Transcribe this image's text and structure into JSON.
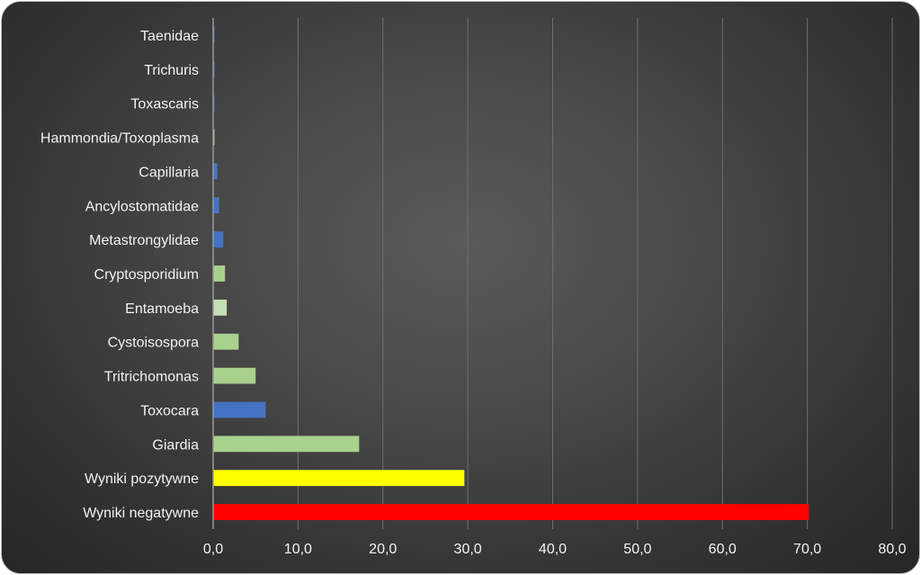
{
  "chart_data": {
    "type": "bar",
    "orientation": "horizontal",
    "title": "",
    "xlabel": "",
    "ylabel": "",
    "xlim": [
      0,
      80
    ],
    "grid": "vertical",
    "legend": "none",
    "tick_labels": [
      "0,0",
      "10,0",
      "20,0",
      "30,0",
      "40,0",
      "50,0",
      "60,0",
      "70,0",
      "80,0"
    ],
    "categories": [
      "Taenidae",
      "Trichuris",
      "Toxascaris",
      "Hammondia/Toxoplasma",
      "Capillaria",
      "Ancylostomatidae",
      "Metastrongylidae",
      "Cryptosporidium",
      "Entamoeba",
      "Cystoisospora",
      "Tritrichomonas",
      "Toxocara",
      "Giardia",
      "Wyniki pozytywne",
      "Wyniki negatywne"
    ],
    "values": [
      0.05,
      0.05,
      0.1,
      0.15,
      0.5,
      0.7,
      1.2,
      1.4,
      1.6,
      3.0,
      5.0,
      6.2,
      17.2,
      29.6,
      70.2
    ],
    "colors": [
      "#4472c4",
      "#4472c4",
      "#4472c4",
      "#a9d18e",
      "#4472c4",
      "#4472c4",
      "#4472c4",
      "#a9d18e",
      "#c5e0b4",
      "#a9d18e",
      "#a9d18e",
      "#4472c4",
      "#a9d18e",
      "#ffff00",
      "#ff0000"
    ]
  }
}
